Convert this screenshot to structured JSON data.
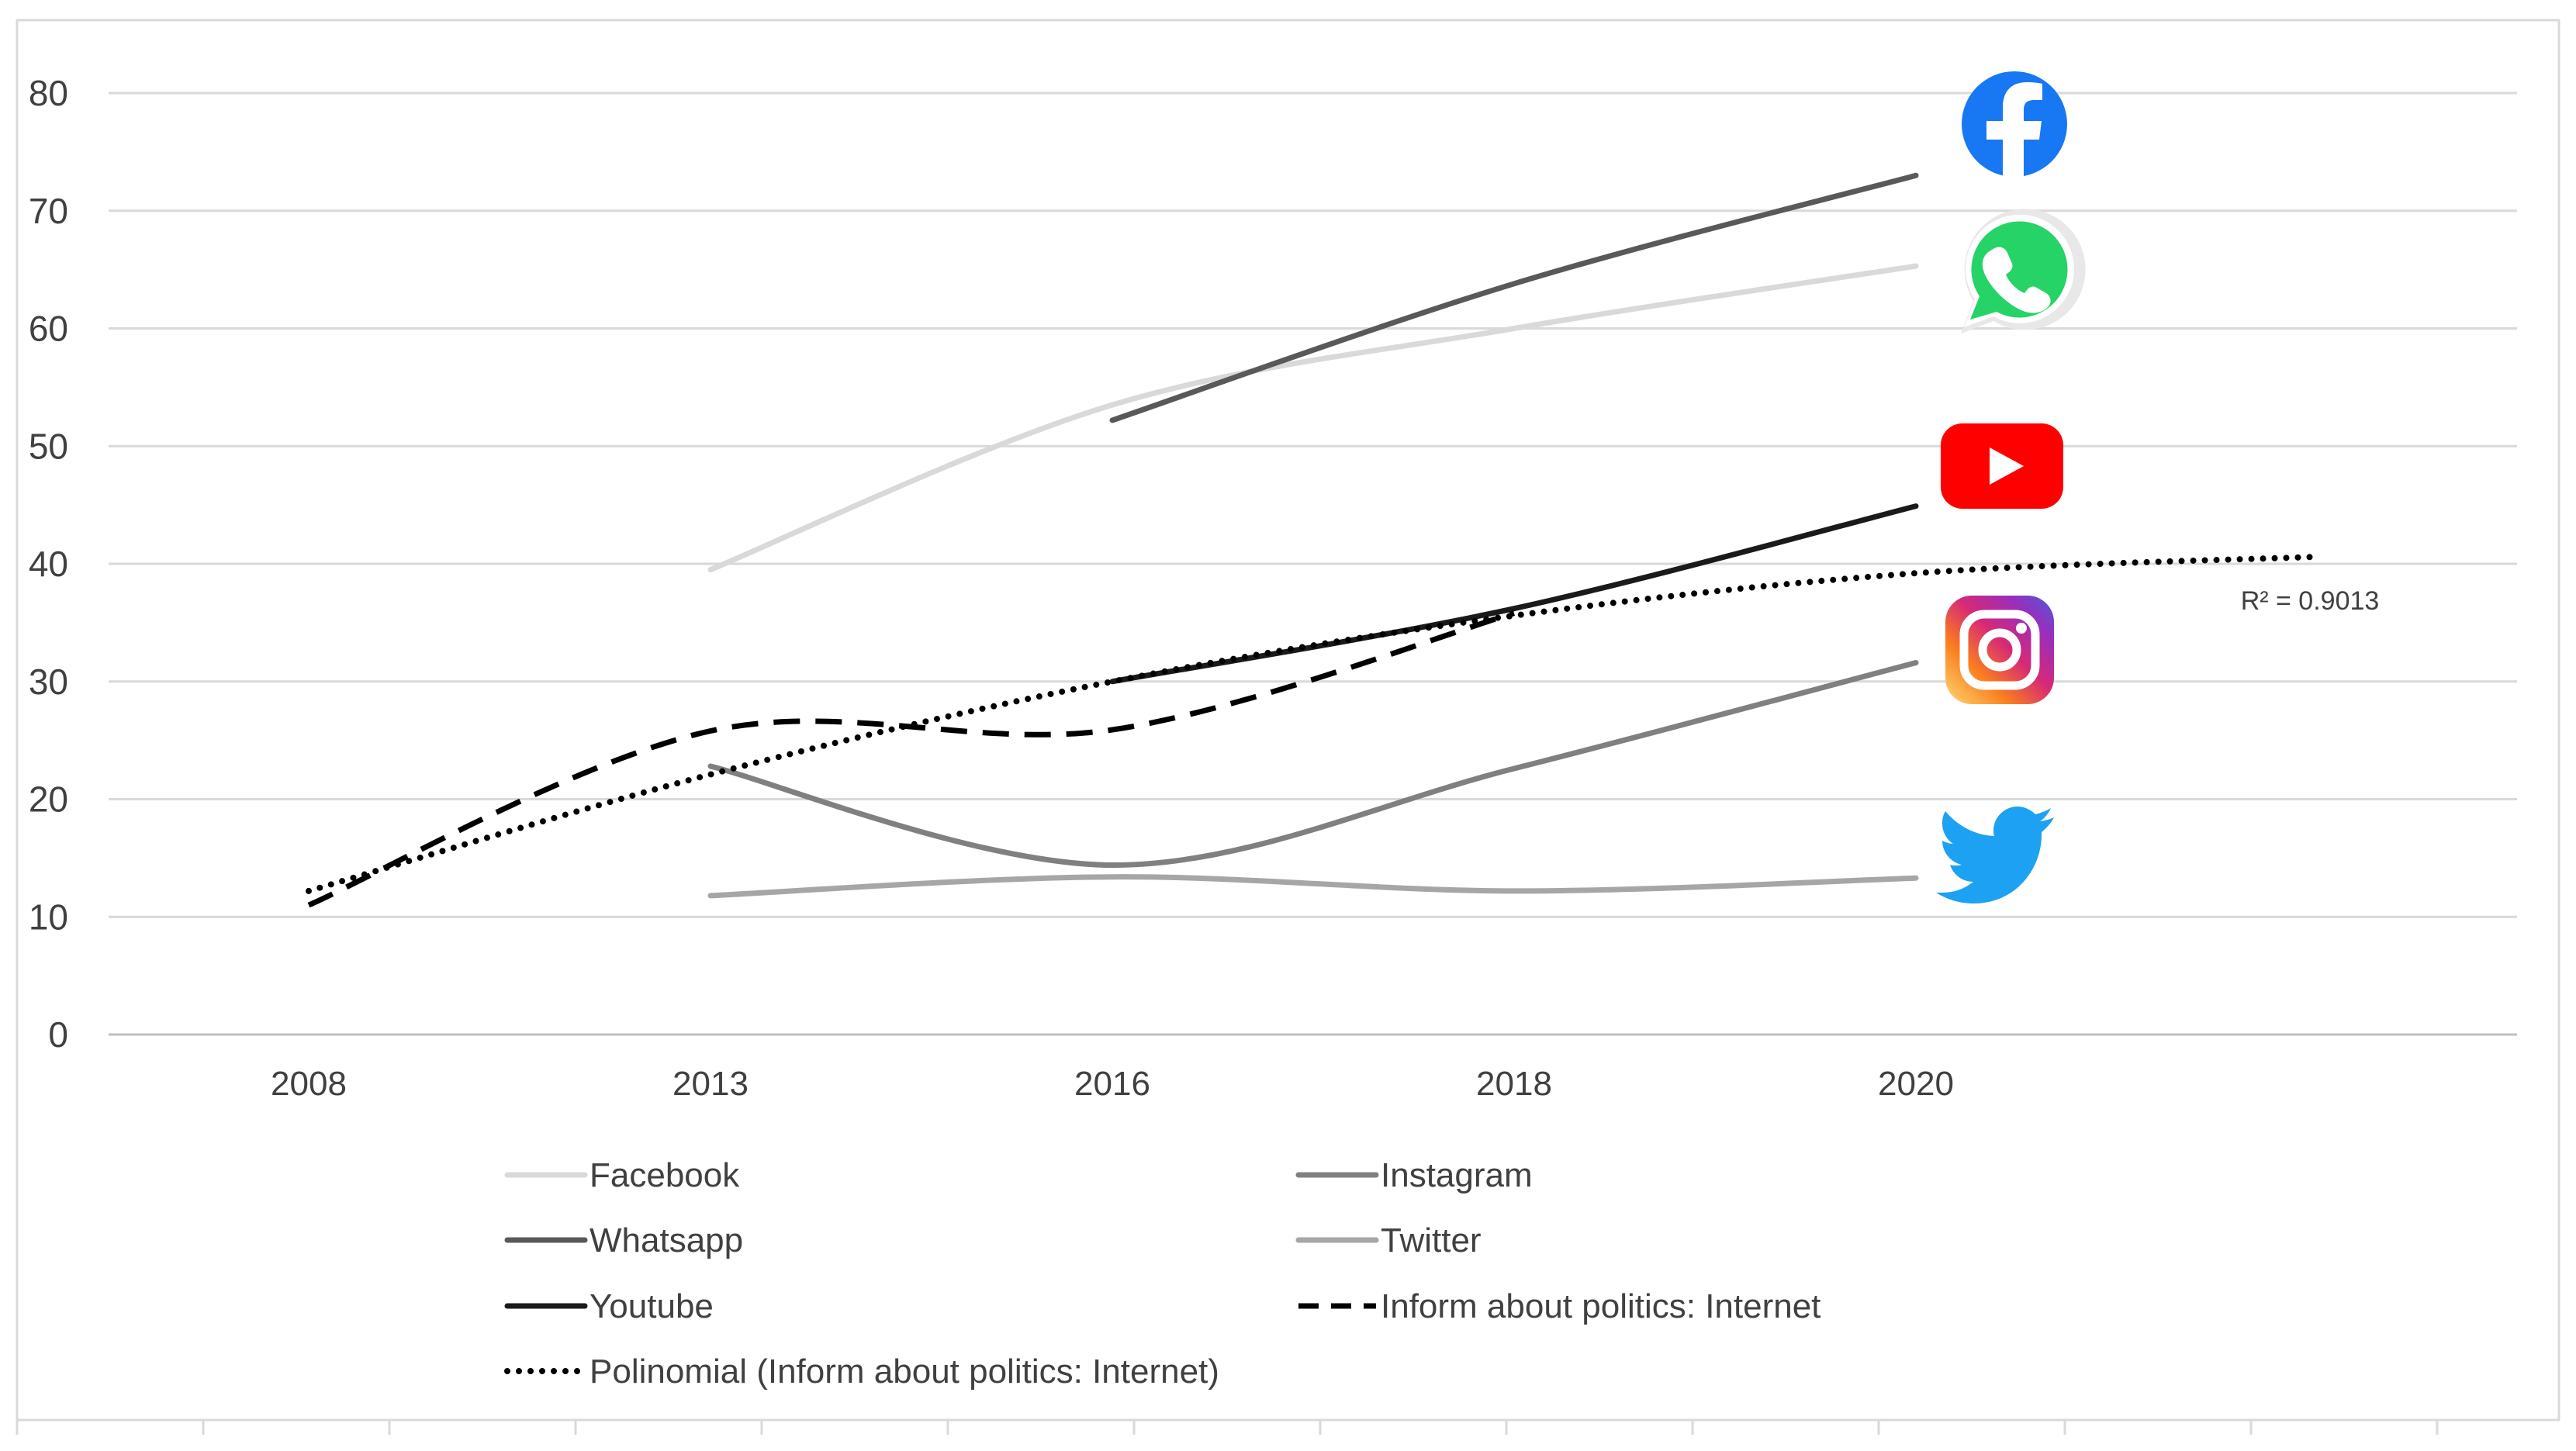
{
  "chart_data": {
    "type": "line",
    "title": "",
    "xlabel": "",
    "ylabel": "",
    "categories": [
      "2008",
      "2013",
      "2016",
      "2018",
      "2020"
    ],
    "y_ticks": [
      "0",
      "10",
      "20",
      "30",
      "40",
      "50",
      "60",
      "70",
      "80"
    ],
    "ylim": [
      0,
      80
    ],
    "grid": true,
    "legend_position": "bottom",
    "series": [
      {
        "name": "Facebook",
        "style": "solid",
        "color": "#d9d9d9",
        "icon": "facebook-icon",
        "values": [
          null,
          39.5,
          53.5,
          60,
          65.3
        ]
      },
      {
        "name": "Instagram",
        "style": "solid",
        "color": "#808080",
        "icon": "instagram-icon",
        "values": [
          null,
          22.8,
          14.4,
          22.6,
          31.6
        ]
      },
      {
        "name": "Whatsapp",
        "style": "solid",
        "color": "#595959",
        "icon": "whatsapp-icon",
        "values": [
          null,
          null,
          52.2,
          63.8,
          73
        ]
      },
      {
        "name": "Twitter",
        "style": "solid",
        "color": "#a6a6a6",
        "icon": "twitter-icon",
        "values": [
          null,
          11.8,
          13.4,
          12.2,
          13.3
        ]
      },
      {
        "name": "Youtube",
        "style": "solid",
        "color": "#1a1a1a",
        "icon": "youtube-icon",
        "values": [
          null,
          null,
          30,
          36.2,
          44.9
        ]
      },
      {
        "name": "Inform about politics: Internet",
        "style": "dashed",
        "color": "#000000",
        "values": [
          11,
          25.8,
          25.9,
          35.8,
          null
        ]
      },
      {
        "name": "Polinomial (Inform about politics: Internet)",
        "style": "dotted",
        "color": "#000000",
        "x": [
          0,
          1,
          2,
          3,
          4,
          5
        ],
        "values": [
          12.2,
          22.1,
          30,
          35.6,
          39.2,
          40.6
        ]
      }
    ],
    "annotations": [
      {
        "text": "R² = 0.9013",
        "series": "Polinomial (Inform about politics: Internet)"
      }
    ],
    "legend": {
      "items": [
        "Facebook",
        "Instagram",
        "Whatsapp",
        "Twitter",
        "Youtube",
        "Inform about politics: Internet",
        "Polinomial (Inform about politics: Internet)"
      ]
    }
  }
}
